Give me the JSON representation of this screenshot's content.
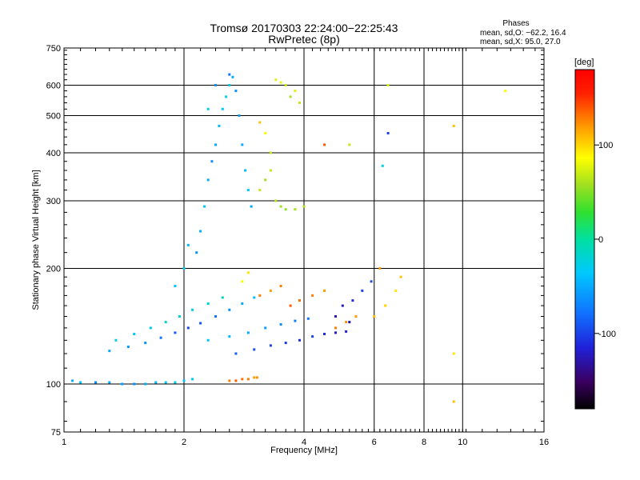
{
  "chart_data": {
    "type": "scatter",
    "title": "Tromsø 20170303 22:24:00−22:25:43",
    "subtitle": "RwPretec (8p)",
    "xlabel": "Frequency [MHz]",
    "ylabel": "Stationary phase Virtual Height [km]",
    "x_scale": "log",
    "y_scale": "log",
    "xlim": [
      1,
      16
    ],
    "ylim": [
      75,
      750
    ],
    "x_ticks": [
      1,
      2,
      4,
      6,
      8,
      10,
      16
    ],
    "y_ticks": [
      75,
      100,
      200,
      300,
      400,
      500,
      600,
      750
    ],
    "grid": true,
    "stats": {
      "heading": "Phases",
      "line1": "mean, sd,O: −62.2, 16.4",
      "line2": "mean, sd,X:  95.0, 27.0"
    },
    "colorbar": {
      "label": "[deg]",
      "range": [
        -180,
        180
      ],
      "ticks": [
        100,
        0,
        -100
      ],
      "colormap": [
        "#000000",
        "#3a0060",
        "#2020d8",
        "#1070ff",
        "#00c8ff",
        "#00e0a0",
        "#30e030",
        "#a0e020",
        "#ffff00",
        "#ff9000",
        "#ff2000",
        "#ff0000"
      ]
    },
    "series": [
      {
        "trace": "O-trace lower region",
        "points": [
          [
            1.05,
            102,
            -60
          ],
          [
            1.1,
            101,
            -50
          ],
          [
            1.2,
            101,
            -70
          ],
          [
            1.3,
            101,
            -60
          ],
          [
            1.4,
            100,
            -65
          ],
          [
            1.5,
            100,
            -70
          ],
          [
            1.6,
            100,
            -60
          ],
          [
            1.7,
            101,
            -55
          ],
          [
            1.8,
            101,
            -45
          ],
          [
            1.9,
            101,
            -40
          ],
          [
            2.0,
            102,
            -50
          ],
          [
            2.1,
            103,
            -45
          ],
          [
            1.3,
            122,
            -60
          ],
          [
            1.45,
            125,
            -65
          ],
          [
            1.6,
            128,
            -70
          ],
          [
            1.75,
            132,
            -80
          ],
          [
            1.9,
            136,
            -90
          ],
          [
            2.05,
            140,
            -100
          ],
          [
            2.2,
            144,
            -95
          ],
          [
            2.4,
            150,
            -80
          ],
          [
            2.6,
            156,
            -70
          ],
          [
            2.8,
            162,
            -60
          ],
          [
            3.0,
            168,
            -50
          ],
          [
            1.35,
            130,
            -40
          ],
          [
            1.5,
            135,
            -45
          ],
          [
            1.65,
            140,
            -40
          ],
          [
            1.8,
            145,
            -30
          ],
          [
            1.95,
            150,
            -35
          ],
          [
            2.1,
            156,
            -40
          ],
          [
            2.3,
            162,
            -30
          ],
          [
            2.5,
            168,
            -25
          ],
          [
            2.3,
            130,
            -50
          ],
          [
            2.6,
            133,
            -55
          ],
          [
            2.9,
            136,
            -60
          ],
          [
            3.2,
            140,
            -65
          ],
          [
            3.5,
            143,
            -70
          ],
          [
            3.8,
            146,
            -75
          ],
          [
            4.1,
            148,
            -80
          ],
          [
            2.7,
            120,
            -90
          ],
          [
            3.0,
            123,
            -95
          ],
          [
            3.3,
            126,
            -100
          ],
          [
            3.6,
            128,
            -105
          ],
          [
            3.9,
            130,
            -110
          ],
          [
            4.2,
            133,
            -100
          ],
          [
            4.5,
            135,
            -110
          ],
          [
            4.8,
            136,
            -120
          ],
          [
            5.1,
            137,
            -115
          ],
          [
            5.0,
            160,
            -120
          ],
          [
            5.3,
            165,
            -110
          ],
          [
            5.6,
            175,
            -100
          ],
          [
            5.9,
            185,
            -95
          ],
          [
            4.8,
            150,
            -125
          ],
          [
            5.2,
            145,
            -130
          ]
        ]
      },
      {
        "trace": "O-trace upper region",
        "points": [
          [
            2.15,
            220,
            -70
          ],
          [
            2.2,
            250,
            -60
          ],
          [
            2.25,
            290,
            -50
          ],
          [
            2.3,
            340,
            -60
          ],
          [
            2.35,
            380,
            -70
          ],
          [
            2.4,
            420,
            -60
          ],
          [
            2.45,
            470,
            -55
          ],
          [
            2.5,
            520,
            -50
          ],
          [
            2.55,
            560,
            -40
          ],
          [
            2.6,
            600,
            -45
          ],
          [
            2.65,
            630,
            -60
          ],
          [
            2.7,
            580,
            -70
          ],
          [
            2.75,
            500,
            -65
          ],
          [
            2.8,
            420,
            -60
          ],
          [
            2.85,
            360,
            -55
          ],
          [
            2.9,
            320,
            -50
          ],
          [
            2.95,
            290,
            -60
          ],
          [
            2.3,
            520,
            -40
          ],
          [
            2.4,
            600,
            -70
          ],
          [
            2.6,
            640,
            -80
          ],
          [
            1.9,
            180,
            -50
          ],
          [
            2.0,
            200,
            -40
          ],
          [
            2.05,
            230,
            -55
          ]
        ]
      },
      {
        "trace": "X-trace lower",
        "points": [
          [
            2.6,
            102,
            120
          ],
          [
            2.7,
            102,
            130
          ],
          [
            2.8,
            103,
            125
          ],
          [
            2.9,
            103,
            120
          ],
          [
            3.0,
            104,
            110
          ],
          [
            3.05,
            104,
            115
          ],
          [
            3.1,
            170,
            120
          ],
          [
            3.3,
            175,
            110
          ],
          [
            3.5,
            180,
            120
          ],
          [
            3.7,
            160,
            130
          ],
          [
            3.9,
            165,
            125
          ],
          [
            4.2,
            170,
            120
          ],
          [
            4.5,
            175,
            110
          ],
          [
            4.8,
            140,
            120
          ],
          [
            5.1,
            145,
            115
          ],
          [
            5.4,
            150,
            110
          ],
          [
            6.0,
            150,
            100
          ],
          [
            6.4,
            160,
            95
          ],
          [
            6.8,
            175,
            90
          ],
          [
            7.0,
            190,
            100
          ],
          [
            6.2,
            200,
            110
          ],
          [
            2.8,
            185,
            80
          ],
          [
            2.9,
            195,
            90
          ]
        ]
      },
      {
        "trace": "X-trace upper",
        "points": [
          [
            3.1,
            320,
            60
          ],
          [
            3.2,
            340,
            50
          ],
          [
            3.3,
            360,
            60
          ],
          [
            3.4,
            300,
            55
          ],
          [
            3.5,
            290,
            50
          ],
          [
            3.6,
            285,
            45
          ],
          [
            3.8,
            285,
            50
          ],
          [
            4.0,
            290,
            55
          ],
          [
            3.3,
            400,
            60
          ],
          [
            3.2,
            450,
            80
          ],
          [
            3.1,
            480,
            100
          ],
          [
            3.4,
            620,
            70
          ],
          [
            3.6,
            600,
            60
          ],
          [
            3.8,
            580,
            70
          ],
          [
            3.9,
            540,
            60
          ],
          [
            3.7,
            560,
            50
          ],
          [
            3.5,
            610,
            75
          ]
        ]
      },
      {
        "trace": "scattered echoes",
        "points": [
          [
            9.5,
            90,
            100
          ],
          [
            9.5,
            470,
            100
          ],
          [
            12.8,
            580,
            80
          ],
          [
            9.5,
            120,
            90
          ],
          [
            6.5,
            600,
            70
          ],
          [
            6.5,
            450,
            -100
          ],
          [
            6.3,
            370,
            -40
          ],
          [
            4.5,
            420,
            130
          ],
          [
            5.2,
            420,
            60
          ]
        ]
      }
    ]
  }
}
